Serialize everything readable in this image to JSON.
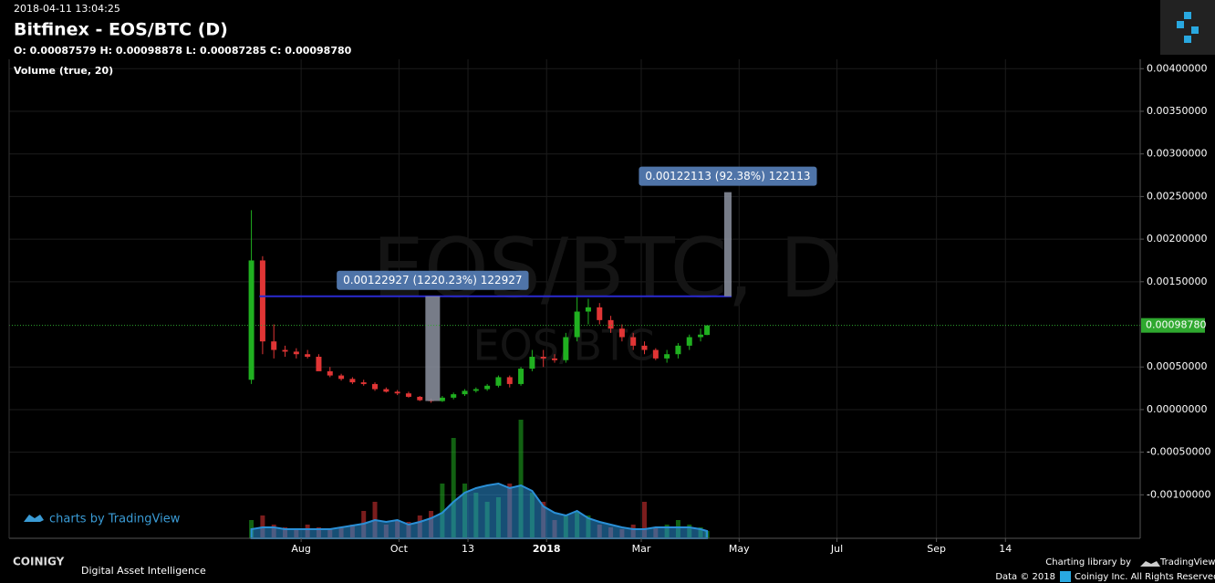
{
  "header": {
    "timestamp": "2018-04-11 13:04:25",
    "title": "Bitfinex - EOS/BTC (D)",
    "ohlc": "O: 0.00087579 H: 0.00098878 L: 0.00087285 C: 0.00098780",
    "volume_label": "Volume (true, 20)"
  },
  "chart_data": {
    "type": "candlestick",
    "watermark": "EOS/BTC, D",
    "watermark_sub": "EOS/BTC",
    "x": [
      -31,
      -24,
      -17,
      -10,
      -3,
      4,
      11,
      18,
      25,
      32,
      39,
      46,
      53,
      60,
      67,
      74,
      81,
      88,
      95,
      102,
      109,
      116,
      123,
      130,
      137,
      144,
      151,
      158,
      165,
      172,
      179,
      186,
      193,
      200,
      207,
      214,
      221,
      228,
      235,
      242,
      249,
      253
    ],
    "open": [
      0.00035,
      0.00175,
      0.0008,
      0.0007,
      0.00068,
      0.00065,
      0.00062,
      0.00045,
      0.0004,
      0.00036,
      0.00032,
      0.0003,
      0.00024,
      0.00021,
      0.00019,
      0.00015,
      0.00011,
      0.0001,
      0.00014,
      0.00018,
      0.00022,
      0.00024,
      0.00028,
      0.00038,
      0.0003,
      0.00048,
      0.00062,
      0.0006,
      0.00058,
      0.00085,
      0.00115,
      0.0012,
      0.00105,
      0.00095,
      0.00085,
      0.00075,
      0.0007,
      0.0006,
      0.00065,
      0.00075,
      0.00085,
      0.00087579
    ],
    "high": [
      0.00234,
      0.0018,
      0.001,
      0.00075,
      0.00072,
      0.0007,
      0.00065,
      0.0005,
      0.00042,
      0.00038,
      0.00035,
      0.00032,
      0.00026,
      0.00023,
      0.00021,
      0.00016,
      0.00013,
      0.00016,
      0.0002,
      0.00024,
      0.00026,
      0.0003,
      0.0004,
      0.0004,
      0.0005,
      0.0007,
      0.0007,
      0.00065,
      0.0009,
      0.00132,
      0.0013,
      0.00125,
      0.0011,
      0.001,
      0.0009,
      0.0008,
      0.00072,
      0.0007,
      0.00078,
      0.00088,
      0.00095,
      0.00098878
    ],
    "low": [
      0.0003,
      0.00065,
      0.0006,
      0.00062,
      0.0006,
      0.0006,
      0.00048,
      0.00038,
      0.00034,
      0.0003,
      0.00028,
      0.00022,
      0.0002,
      0.00017,
      0.00014,
      0.0001,
      8e-05,
      9e-05,
      0.00012,
      0.00016,
      0.0002,
      0.00022,
      0.00026,
      0.00026,
      0.00028,
      0.00045,
      0.0005,
      0.00055,
      0.00055,
      0.0008,
      0.001,
      0.001,
      0.0009,
      0.0008,
      0.0007,
      0.00065,
      0.00058,
      0.00055,
      0.0006,
      0.0007,
      0.0008,
      0.00087285
    ],
    "close": [
      0.00175,
      0.0008,
      0.0007,
      0.00068,
      0.00065,
      0.00062,
      0.00045,
      0.0004,
      0.00036,
      0.00032,
      0.0003,
      0.00024,
      0.00021,
      0.00019,
      0.00015,
      0.00011,
      0.0001,
      0.00014,
      0.00018,
      0.00022,
      0.00024,
      0.00028,
      0.00038,
      0.0003,
      0.00048,
      0.00062,
      0.0006,
      0.00058,
      0.00085,
      0.00115,
      0.0012,
      0.00105,
      0.00095,
      0.00085,
      0.00075,
      0.0007,
      0.0006,
      0.00065,
      0.00075,
      0.00085,
      0.00088,
      0.0009878
    ],
    "volume": [
      20,
      25,
      15,
      12,
      10,
      15,
      12,
      10,
      12,
      15,
      30,
      40,
      15,
      20,
      18,
      25,
      30,
      60,
      110,
      60,
      50,
      40,
      45,
      60,
      130,
      50,
      40,
      20,
      25,
      30,
      25,
      15,
      12,
      10,
      15,
      40,
      12,
      15,
      20,
      15,
      12,
      8
    ],
    "volume_ma": [
      10,
      12,
      12,
      10,
      10,
      10,
      10,
      10,
      12,
      14,
      16,
      20,
      18,
      20,
      15,
      18,
      22,
      28,
      40,
      50,
      55,
      58,
      60,
      55,
      58,
      52,
      35,
      28,
      25,
      30,
      22,
      18,
      15,
      12,
      10,
      10,
      12,
      12,
      12,
      12,
      10,
      8
    ],
    "vlim": [
      0,
      130
    ],
    "up_color": "#20b020",
    "down_color": "#e03535",
    "volume_ma_color": "#2a8fd6",
    "last_price": {
      "value": 0.0009878,
      "label": "0.00098780"
    },
    "last_price_color": "#2fa82f",
    "measures": [
      {
        "label": "0.00122927 (1220.23%) 122927",
        "from": 0.0001007,
        "to": 0.00133,
        "x": 82,
        "x_start": -26
      },
      {
        "label": "0.00122113 (92.38%) 122113",
        "from": 0.00133,
        "to": 0.0025511,
        "x": 266
      }
    ],
    "xlim": [
      -182,
      523
    ],
    "xticks": [
      {
        "value": 0,
        "label": "Aug"
      },
      {
        "value": 61,
        "label": "Oct"
      },
      {
        "value": 104,
        "label": "13"
      },
      {
        "value": 153,
        "label": "2018"
      },
      {
        "value": 212,
        "label": "Mar"
      },
      {
        "value": 273,
        "label": "May"
      },
      {
        "value": 334,
        "label": "Jul"
      },
      {
        "value": 396,
        "label": "Sep"
      },
      {
        "value": 439,
        "label": "14"
      }
    ],
    "ylim": [
      -0.00151,
      0.00411
    ],
    "yticks": [
      {
        "value": 0.004,
        "label": "0.00400000"
      },
      {
        "value": 0.0035,
        "label": "0.00350000"
      },
      {
        "value": 0.003,
        "label": "0.00300000"
      },
      {
        "value": 0.0025,
        "label": "0.00250000"
      },
      {
        "value": 0.002,
        "label": "0.00200000"
      },
      {
        "value": 0.0015,
        "label": "0.00150000"
      },
      {
        "value": 0.0005,
        "label": "0.00050000"
      },
      {
        "value": 0,
        "label": "0.00000000"
      },
      {
        "value": -0.0005,
        "label": "-0.00050000"
      },
      {
        "value": -0.001,
        "label": "-0.00100000"
      }
    ],
    "grid": true
  },
  "footer": {
    "tv_badge": "charts by TradingView",
    "brand": "COINIGY",
    "tagline": "Digital Asset Intelligence",
    "charting_by": "Charting library by",
    "tv": "TradingView",
    "data_copy": "Data © 2018",
    "rights": "Coinigy Inc. All Rights Reserved."
  }
}
